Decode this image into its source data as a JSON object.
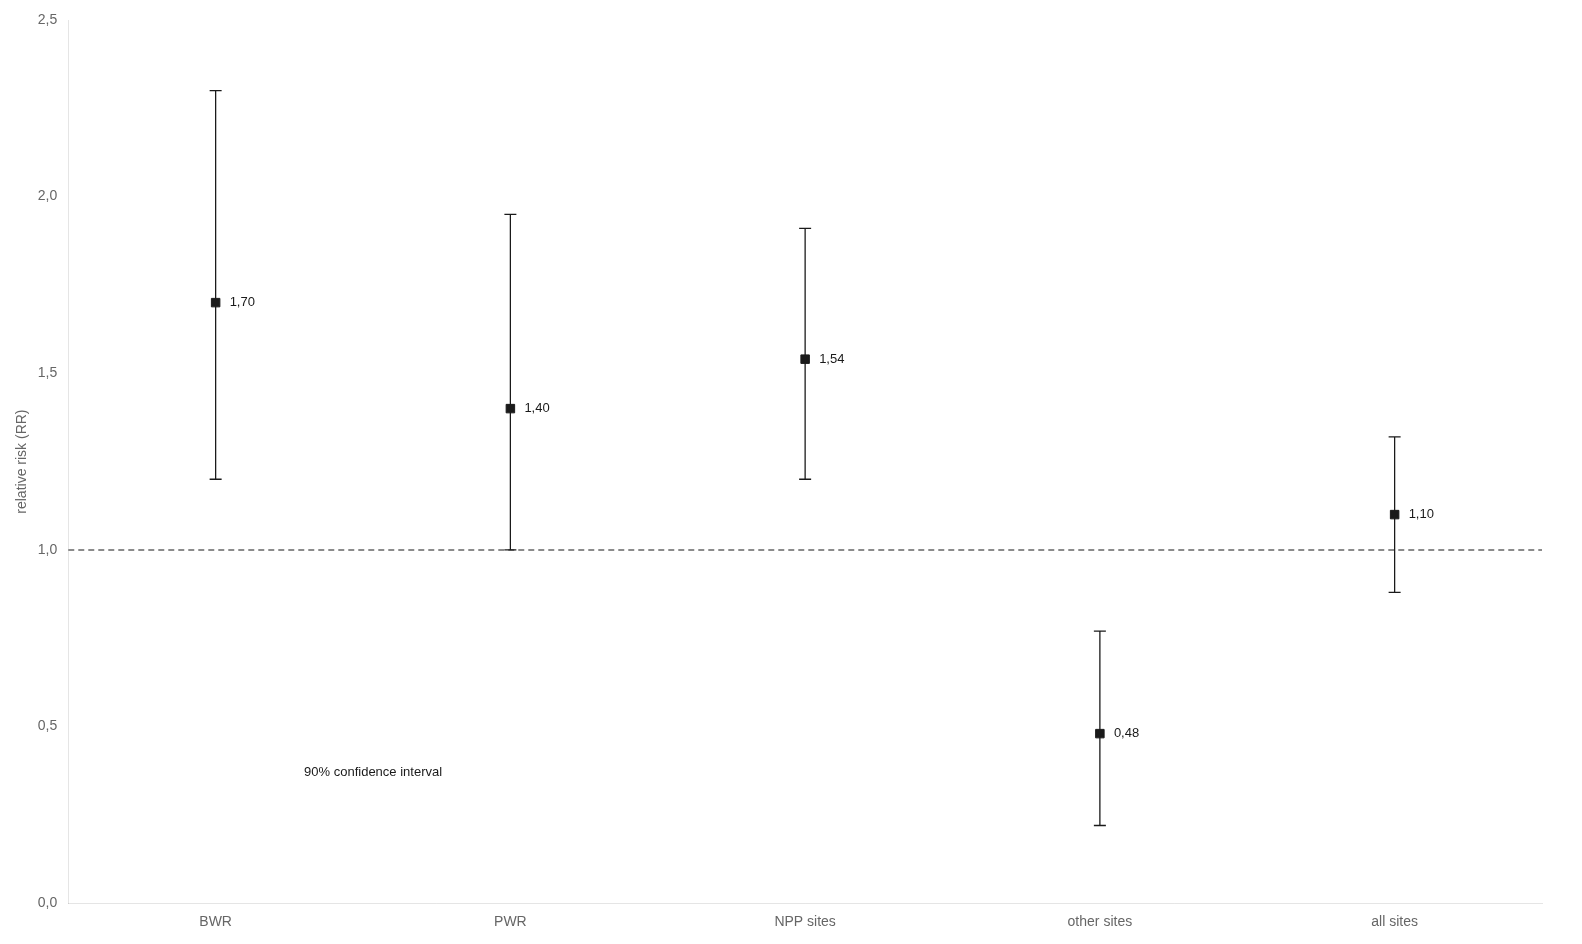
{
  "chart_data": {
    "type": "errorbar",
    "categories": [
      "BWR",
      "PWR",
      "NPP sites",
      "other sites",
      "all sites"
    ],
    "values": [
      1.7,
      1.4,
      1.54,
      0.48,
      1.1
    ],
    "upper_errors": [
      0.6,
      0.55,
      0.37,
      0.29,
      0.22
    ],
    "lower_errors": [
      0.5,
      0.4,
      0.34,
      0.26,
      0.22
    ],
    "value_labels": [
      "1,70",
      "1,40",
      "1,54",
      "0,48",
      "1,10"
    ],
    "data_labels": true,
    "ylabel": "relative risk (RR)",
    "annotation": "90% confidence interval",
    "ref_line": 1.0,
    "ylim": [
      0.0,
      2.5
    ],
    "yticks": [
      {
        "value": 0.0,
        "label": "0,0"
      },
      {
        "value": 0.5,
        "label": "0,5"
      },
      {
        "value": 1.0,
        "label": "1,0"
      },
      {
        "value": 1.5,
        "label": "1,5"
      },
      {
        "value": 2.0,
        "label": "2,0"
      },
      {
        "value": 2.5,
        "label": "2,5"
      }
    ],
    "marker": "square",
    "color": "#1a1a1a",
    "grid": false
  }
}
